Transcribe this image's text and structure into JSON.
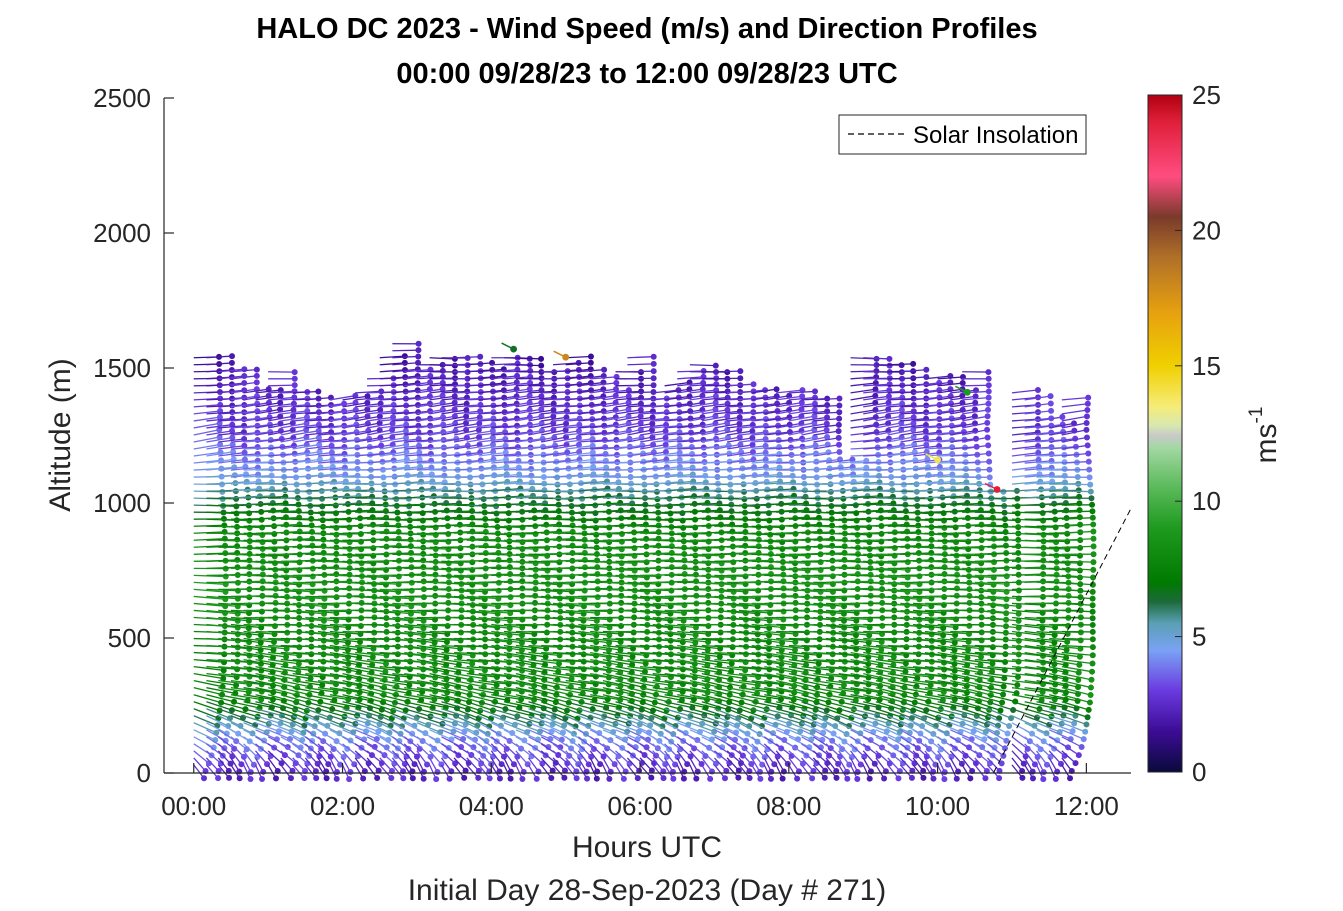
{
  "chart_data": {
    "type": "wind-barb-profile",
    "title": "HALO DC 2023 - Wind Speed (m/s) and Direction Profiles",
    "subtitle": "00:00 09/28/23 to 12:00 09/28/23  UTC",
    "xlabel": "Hours UTC",
    "xlabel2": "Initial Day 28-Sep-2023 (Day # 271)",
    "ylabel": "Altitude (m)",
    "xlim": [
      -0.4,
      12.6
    ],
    "ylim": [
      0,
      2500
    ],
    "x_ticks": [
      0,
      2,
      4,
      6,
      8,
      10,
      12
    ],
    "x_tick_labels": [
      "00:00",
      "02:00",
      "04:00",
      "06:00",
      "08:00",
      "10:00",
      "12:00"
    ],
    "y_ticks": [
      0,
      500,
      1000,
      1500,
      2000,
      2500
    ],
    "y_tick_labels": [
      "0",
      "500",
      "1000",
      "1500",
      "2000",
      "2500"
    ],
    "colorbar": {
      "label": "ms",
      "label_exponent": "-1",
      "range": [
        0,
        25
      ],
      "ticks": [
        0,
        5,
        10,
        15,
        20,
        25
      ],
      "tick_labels": [
        "0",
        "5",
        "10",
        "15",
        "20",
        "25"
      ],
      "stops": [
        {
          "v": 0,
          "c": "#0a0a3c"
        },
        {
          "v": 1.5,
          "c": "#3c0c96"
        },
        {
          "v": 3,
          "c": "#6a3ae0"
        },
        {
          "v": 4.5,
          "c": "#7aa2f5"
        },
        {
          "v": 5.5,
          "c": "#5aa0b4"
        },
        {
          "v": 6.3,
          "c": "#1c6a3a"
        },
        {
          "v": 7,
          "c": "#007a00"
        },
        {
          "v": 9,
          "c": "#1e9a1e"
        },
        {
          "v": 10.5,
          "c": "#5aba5a"
        },
        {
          "v": 12,
          "c": "#a4d8a4"
        },
        {
          "v": 12.4,
          "c": "#c8c8c8"
        },
        {
          "v": 12.8,
          "c": "#d8e8b0"
        },
        {
          "v": 13.5,
          "c": "#f6ec78"
        },
        {
          "v": 15,
          "c": "#f0d000"
        },
        {
          "v": 17,
          "c": "#e6a010"
        },
        {
          "v": 19,
          "c": "#b07028"
        },
        {
          "v": 20.5,
          "c": "#7a3a2a"
        },
        {
          "v": 22,
          "c": "#ff4c80"
        },
        {
          "v": 24,
          "c": "#e0203a"
        },
        {
          "v": 25,
          "c": "#b00010"
        }
      ]
    },
    "profile_times_hours": [
      0.0,
      0.17,
      0.33,
      0.5,
      0.67,
      0.83,
      1.0,
      1.17,
      1.33,
      1.5,
      1.67,
      1.83,
      2.0,
      2.17,
      2.33,
      2.5,
      2.67,
      2.83,
      3.0,
      3.17,
      3.33,
      3.5,
      3.67,
      3.83,
      4.0,
      4.17,
      4.33,
      4.5,
      4.67,
      4.83,
      5.0,
      5.17,
      5.33,
      5.5,
      5.67,
      5.83,
      6.0,
      6.17,
      6.33,
      6.5,
      6.67,
      6.83,
      7.0,
      7.17,
      7.33,
      7.5,
      7.67,
      7.83,
      8.0,
      8.17,
      8.33,
      8.5,
      8.67,
      8.83,
      9.0,
      9.17,
      9.33,
      9.5,
      9.67,
      9.83,
      10.0,
      10.17,
      10.33,
      10.5,
      10.67,
      11.0,
      11.17,
      11.33,
      11.5,
      11.67
    ],
    "profile_top_altitude_m": [
      1550,
      1540,
      1500,
      1490,
      1420,
      1410,
      1490,
      1430,
      1420,
      1400,
      1380,
      1400,
      1400,
      1420,
      1480,
      1560,
      1590,
      1500,
      1520,
      1540,
      1560,
      1550,
      1520,
      1500,
      1560,
      1560,
      1550,
      1500,
      1500,
      1520,
      1540,
      1500,
      1470,
      1410,
      1500,
      1540,
      1400,
      1420,
      1450,
      1510,
      1520,
      1490,
      1500,
      1440,
      1430,
      1420,
      1400,
      1410,
      1410,
      1400,
      1400,
      1150,
      1160,
      1540,
      1540,
      1520,
      1520,
      1510,
      1440,
      1480,
      1470,
      1410,
      1490,
      1050,
      1060,
      1410,
      1400,
      1310,
      1300,
      1400
    ],
    "wind_speed_profile": [
      {
        "altitude_m": 50,
        "speed_ms": 2.5,
        "direction_deg": 200
      },
      {
        "altitude_m": 150,
        "speed_ms": 4.0,
        "direction_deg": 225
      },
      {
        "altitude_m": 300,
        "speed_ms": 8.0,
        "direction_deg": 250
      },
      {
        "altitude_m": 500,
        "speed_ms": 8.0,
        "direction_deg": 262
      },
      {
        "altitude_m": 700,
        "speed_ms": 8.5,
        "direction_deg": 268
      },
      {
        "altitude_m": 900,
        "speed_ms": 8.0,
        "direction_deg": 270
      },
      {
        "altitude_m": 1000,
        "speed_ms": 6.5,
        "direction_deg": 272
      },
      {
        "altitude_m": 1100,
        "speed_ms": 4.5,
        "direction_deg": 275
      },
      {
        "altitude_m": 1250,
        "speed_ms": 3.0,
        "direction_deg": 285
      },
      {
        "altitude_m": 1400,
        "speed_ms": 2.5,
        "direction_deg": 280
      },
      {
        "altitude_m": 1550,
        "speed_ms": 2.0,
        "direction_deg": 270
      }
    ],
    "highlights": [
      {
        "time_hours": 4.3,
        "altitude_m": 1570,
        "speed_ms": 6.5
      },
      {
        "time_hours": 5.0,
        "altitude_m": 1540,
        "speed_ms": 18.0
      },
      {
        "time_hours": 10.0,
        "altitude_m": 1160,
        "speed_ms": 14.0
      },
      {
        "time_hours": 10.4,
        "altitude_m": 1410,
        "speed_ms": 9.0
      },
      {
        "time_hours": 10.8,
        "altitude_m": 1050,
        "speed_ms": 24.0
      }
    ],
    "solar_insolation": {
      "name": "Solar Insolation",
      "points": [
        [
          -0.4,
          0
        ],
        [
          10.75,
          0
        ],
        [
          12.6,
          980
        ]
      ]
    },
    "legend_placement": "top-right",
    "grid": false
  }
}
